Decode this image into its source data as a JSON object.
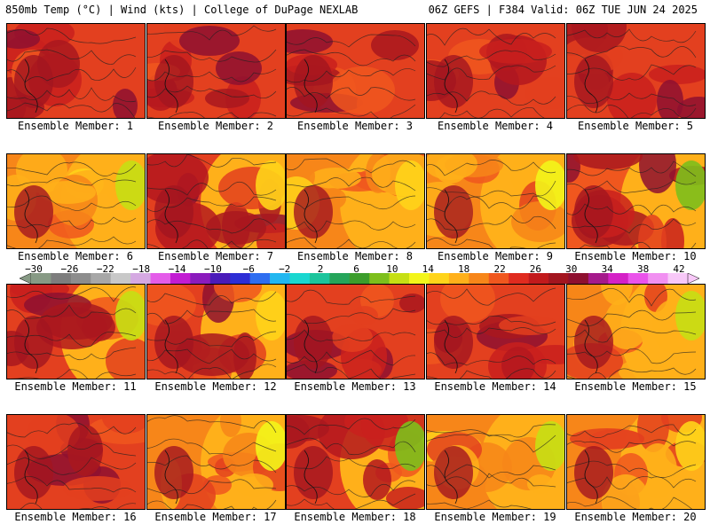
{
  "header": {
    "left": "850mb Temp (°C) | Wind (kts) | College of DuPage NEXLAB",
    "right": "06Z GEFS | F384 Valid: 06Z TUE JUN 24 2025"
  },
  "colorbar": {
    "labels": [
      "−30",
      "−26",
      "−22",
      "−18",
      "−14",
      "−10",
      "−6",
      "−2",
      "2",
      "6",
      "10",
      "14",
      "18",
      "22",
      "26",
      "30",
      "34",
      "38",
      "42"
    ],
    "colors": [
      "#879a85",
      "#7d7d7d",
      "#8d8d8d",
      "#a7a7a7",
      "#c8c8c8",
      "#d5a9e2",
      "#e45ce9",
      "#c21cd2",
      "#8b1bbd",
      "#4a1bb9",
      "#2e2ed5",
      "#2f6ef0",
      "#22b7f0",
      "#1ad7d0",
      "#1cc49c",
      "#25a55a",
      "#3c9d2c",
      "#7dbf1c",
      "#c6df14",
      "#f3f51a",
      "#ffd41a",
      "#ffb01a",
      "#f78619",
      "#f0571e",
      "#e02b1f",
      "#c21a1c",
      "#a3151f",
      "#8e1030",
      "#a51a8b",
      "#d421c6",
      "#ea52ea",
      "#f190f1",
      "#f8c8f8"
    ]
  },
  "members": [
    {
      "label": "Ensemble Member: 1"
    },
    {
      "label": "Ensemble Member: 2"
    },
    {
      "label": "Ensemble Member: 3"
    },
    {
      "label": "Ensemble Member: 4"
    },
    {
      "label": "Ensemble Member: 5"
    },
    {
      "label": "Ensemble Member: 6"
    },
    {
      "label": "Ensemble Member: 7"
    },
    {
      "label": "Ensemble Member: 8"
    },
    {
      "label": "Ensemble Member: 9"
    },
    {
      "label": "Ensemble Member: 10"
    },
    {
      "label": "Ensemble Member: 11"
    },
    {
      "label": "Ensemble Member: 12"
    },
    {
      "label": "Ensemble Member: 13"
    },
    {
      "label": "Ensemble Member: 14"
    },
    {
      "label": "Ensemble Member: 15"
    },
    {
      "label": "Ensemble Member: 16"
    },
    {
      "label": "Ensemble Member: 17"
    },
    {
      "label": "Ensemble Member: 18"
    },
    {
      "label": "Ensemble Member: 19"
    },
    {
      "label": "Ensemble Member: 20"
    }
  ]
}
